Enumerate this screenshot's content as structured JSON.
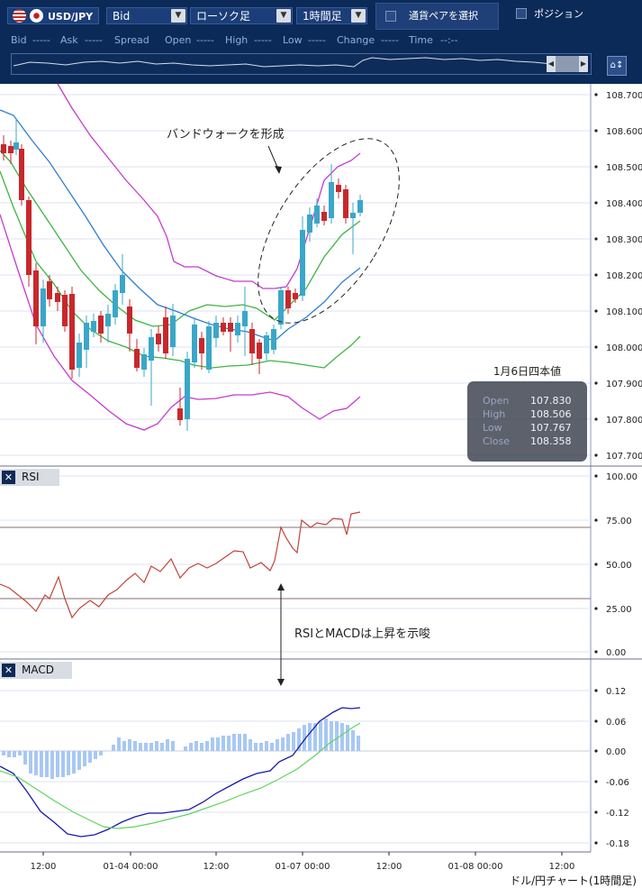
{
  "toolbar": {
    "pair": "USD/JPY",
    "price_type": "Bid",
    "chart_type": "ローソク足",
    "timeframe": "1時間足",
    "select_pair": "通貨ペアを選択",
    "position": "ポジション",
    "colors": {
      "bar_bg": "#0b2a58",
      "control_bg": "#1b3d78"
    }
  },
  "quote": {
    "bid_label": "Bid",
    "bid_value": "-----",
    "ask_label": "Ask",
    "ask_value": "-----",
    "spread_label": "Spread",
    "open_label": "Open",
    "open_value": "-----",
    "high_label": "High",
    "high_value": "-----",
    "low_label": "Low",
    "low_value": "-----",
    "change_label": "Change",
    "change_value": "-----",
    "time_label": "Time",
    "time_value": "--:--"
  },
  "main_chart": {
    "y_ticks": [
      "108.700",
      "108.600",
      "108.500",
      "108.400",
      "108.300",
      "108.200",
      "108.100",
      "108.000",
      "107.900",
      "107.800",
      "107.700"
    ],
    "annotation": "バンドウォークを形成",
    "ohlc": {
      "title": "1月6日四本値",
      "open_label": "Open",
      "open": "107.830",
      "high_label": "High",
      "high": "108.506",
      "low_label": "Low",
      "low": "107.767",
      "close_label": "Close",
      "close": "108.358"
    },
    "colors": {
      "up": "#3aa7c8",
      "down": "#c8282c",
      "ma": "#2e7fd0",
      "band_inner": "#3db543",
      "band_outer": "#c63bcd"
    }
  },
  "rsi_panel": {
    "label": "RSI",
    "y_ticks": [
      "100.00",
      "75.00",
      "50.00",
      "25.00",
      "0.00"
    ],
    "line_color": "#c0443a"
  },
  "middle_annotation": "RSIとMACDは上昇を示唆",
  "macd_panel": {
    "label": "MACD",
    "y_ticks": [
      "0.12",
      "0.06",
      "0.00",
      "-0.06",
      "-0.12",
      "-0.18"
    ],
    "colors": {
      "macd": "#1a1aa8",
      "signal": "#5ed45e",
      "hist": "#a8c8f4"
    }
  },
  "x_axis": {
    "labels": [
      "12:00",
      "01-04 00:00",
      "12:00",
      "01-07 00:00",
      "12:00",
      "01-08 00:00",
      "12:00"
    ]
  },
  "footer": "ドル/円チャート(1時間足)",
  "chart_data": {
    "type": "line",
    "x": [
      "12:00",
      "01-04 00:00",
      "12:00",
      "01-07 00:00",
      "12:00",
      "01-08 00:00",
      "12:00"
    ],
    "ylim": [
      107.7,
      108.7
    ]
  }
}
